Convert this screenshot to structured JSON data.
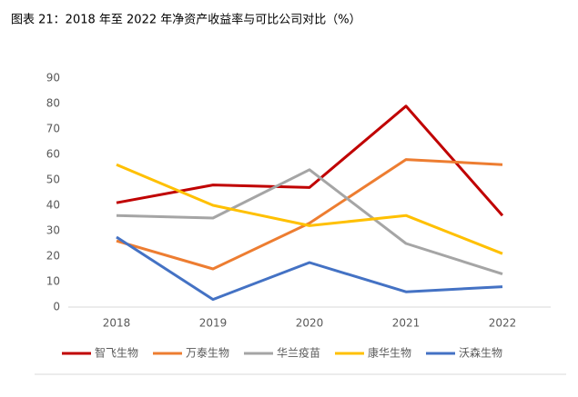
{
  "chart_data": {
    "type": "line",
    "title": "图表 21：2018 年至 2022 年净资产收益率与可比公司对比（%）",
    "categories": [
      "2018",
      "2019",
      "2020",
      "2021",
      "2022"
    ],
    "series": [
      {
        "name": "智飞生物",
        "color": "#c00000",
        "values": [
          41,
          48,
          47,
          79,
          36
        ]
      },
      {
        "name": "万泰生物",
        "color": "#ed7d31",
        "values": [
          26,
          15,
          33,
          58,
          56
        ]
      },
      {
        "name": "华兰疫苗",
        "color": "#a5a5a5",
        "values": [
          36,
          35,
          54,
          25,
          13
        ]
      },
      {
        "name": "康华生物",
        "color": "#ffc000",
        "values": [
          56,
          40,
          32,
          36,
          21
        ]
      },
      {
        "name": "沃森生物",
        "color": "#4472c4",
        "values": [
          27.5,
          3,
          17.5,
          6,
          8
        ]
      }
    ],
    "ylim": [
      0,
      90
    ],
    "yticks": [
      0,
      10,
      20,
      30,
      40,
      50,
      60,
      70,
      80,
      90
    ],
    "grid": false,
    "legend": "bottom"
  }
}
